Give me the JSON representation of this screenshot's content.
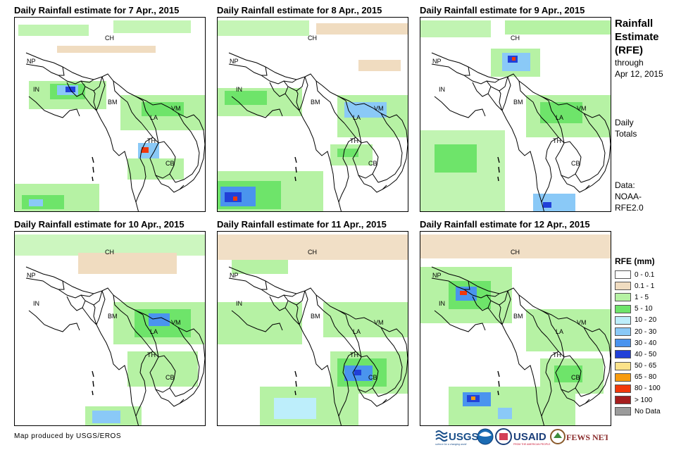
{
  "panels": [
    {
      "title": "Daily Rainfall estimate for 7 Apr., 2015"
    },
    {
      "title": "Daily Rainfall estimate for 8 Apr., 2015"
    },
    {
      "title": "Daily Rainfall estimate for 9 Apr., 2015"
    },
    {
      "title": "Daily Rainfall estimate for 10 Apr., 2015"
    },
    {
      "title": "Daily Rainfall estimate for 11 Apr., 2015"
    },
    {
      "title": "Daily Rainfall estimate for 12 Apr., 2015"
    }
  ],
  "country_labels": {
    "ch": "CH",
    "np": "NP",
    "in": "IN",
    "bm": "BM",
    "la": "LA",
    "vm": "VM",
    "th": "TH",
    "cb": "CB"
  },
  "side": {
    "title_lines": [
      "Rainfall",
      "Estimate",
      "(RFE)"
    ],
    "through_label": "through",
    "through_date": "Apr 12, 2015",
    "totals_lines": [
      "Daily",
      "Totals"
    ],
    "data_lines": [
      "Data:",
      "NOAA-",
      "RFE2.0"
    ]
  },
  "legend": {
    "title": "RFE (mm)",
    "items": [
      {
        "label": "0 - 0.1",
        "color": "#ffffff"
      },
      {
        "label": "0.1 - 1",
        "color": "#f0dcc0"
      },
      {
        "label": "1 - 5",
        "color": "#b6f2a4"
      },
      {
        "label": "5 - 10",
        "color": "#6ee46a"
      },
      {
        "label": "10 - 20",
        "color": "#bdeefb"
      },
      {
        "label": "20 - 30",
        "color": "#8ac9f7"
      },
      {
        "label": "30 - 40",
        "color": "#4a94ee"
      },
      {
        "label": "40 - 50",
        "color": "#2140d8"
      },
      {
        "label": "50 - 65",
        "color": "#fbe28a"
      },
      {
        "label": "65 - 80",
        "color": "#f79b0e"
      },
      {
        "label": "80 - 100",
        "color": "#f1380a"
      },
      {
        "label": "> 100",
        "color": "#a51d1d"
      },
      {
        "label": "No Data",
        "color": "#9b9b9b"
      }
    ]
  },
  "credit": "Map produced by USGS/EROS",
  "logos": {
    "usgs": "USGS",
    "usgs_tagline": "science for a changing world",
    "usaid": "USAID",
    "usaid_tagline": "FROM THE AMERICAN PEOPLE",
    "fewsnet": "FEWS NET"
  }
}
